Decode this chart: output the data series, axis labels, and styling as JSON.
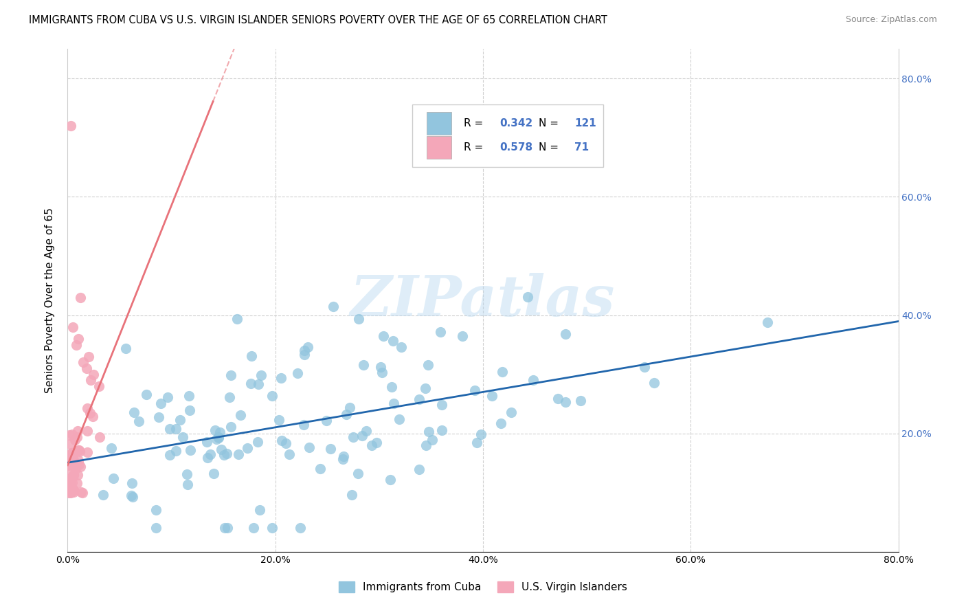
{
  "title": "IMMIGRANTS FROM CUBA VS U.S. VIRGIN ISLANDER SENIORS POVERTY OVER THE AGE OF 65 CORRELATION CHART",
  "source": "Source: ZipAtlas.com",
  "ylabel": "Seniors Poverty Over the Age of 65",
  "xlim": [
    0.0,
    0.8
  ],
  "ylim": [
    0.0,
    0.85
  ],
  "blue_color": "#92C5DE",
  "pink_color": "#F4A7B9",
  "blue_line_color": "#2166AC",
  "pink_line_color": "#E8727A",
  "blue_R": 0.342,
  "blue_N": 121,
  "pink_R": 0.578,
  "pink_N": 71,
  "legend_label_blue": "Immigrants from Cuba",
  "legend_label_pink": "U.S. Virgin Islanders",
  "background_color": "#ffffff",
  "tick_color_right": "#4472C4"
}
